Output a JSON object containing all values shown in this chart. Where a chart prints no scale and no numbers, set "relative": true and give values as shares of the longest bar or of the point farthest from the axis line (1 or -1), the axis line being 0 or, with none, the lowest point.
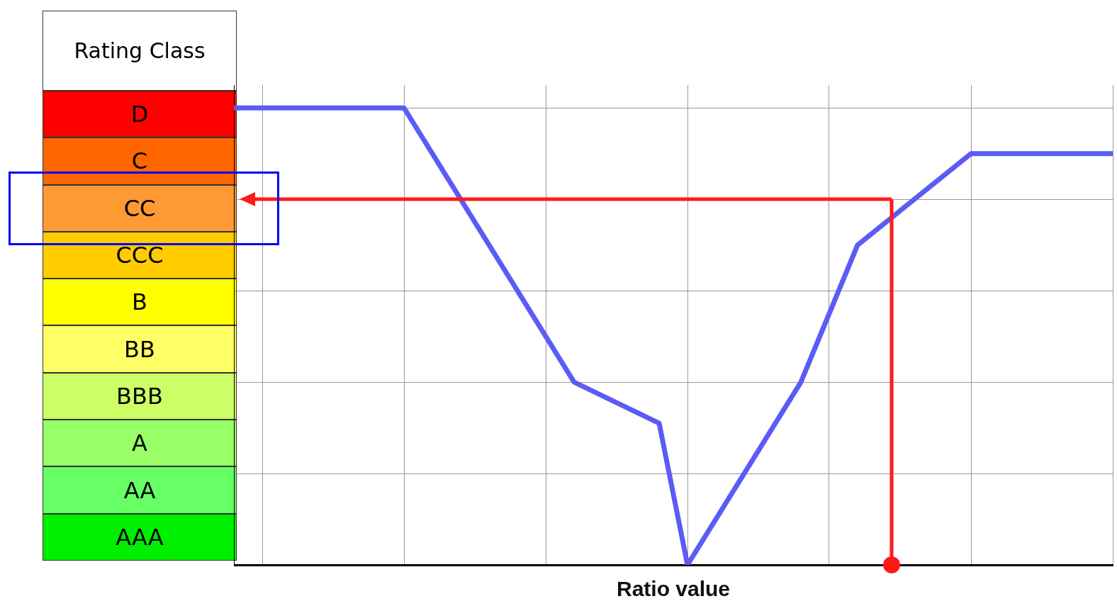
{
  "chart_data": [
    {
      "type": "other",
      "title": "Rating Class",
      "categories": [
        "D",
        "C",
        "CC",
        "CCC",
        "B",
        "BB",
        "BBB",
        "A",
        "AA",
        "AAA"
      ],
      "colors": [
        "#ff0000",
        "#ff6600",
        "#ff9933",
        "#ffcc00",
        "#ffff00",
        "#ffff66",
        "#ccff66",
        "#99ff66",
        "#66ff66",
        "#00ee00"
      ]
    },
    {
      "type": "line",
      "relative": true,
      "xlabel": "Ratio value",
      "grid": true,
      "marker": "none",
      "categories": [
        null,
        null,
        null,
        null,
        null,
        null,
        null,
        null,
        null,
        null,
        null,
        null,
        null,
        null,
        null,
        null,
        null,
        null,
        null,
        null,
        null,
        null,
        null,
        null,
        null,
        null,
        null,
        null,
        null,
        null,
        null,
        null
      ],
      "series": [
        {
          "color": "#5b5bf5",
          "values": [
            1,
            null,
            null,
            null,
            null,
            null,
            1,
            null,
            null,
            null,
            null,
            null,
            0.4,
            null,
            null,
            0.31,
            0,
            null,
            null,
            null,
            0.4,
            null,
            0.7,
            null,
            null,
            null,
            0.9,
            null,
            null,
            null,
            null,
            0.9
          ]
        }
      ]
    }
  ]
}
